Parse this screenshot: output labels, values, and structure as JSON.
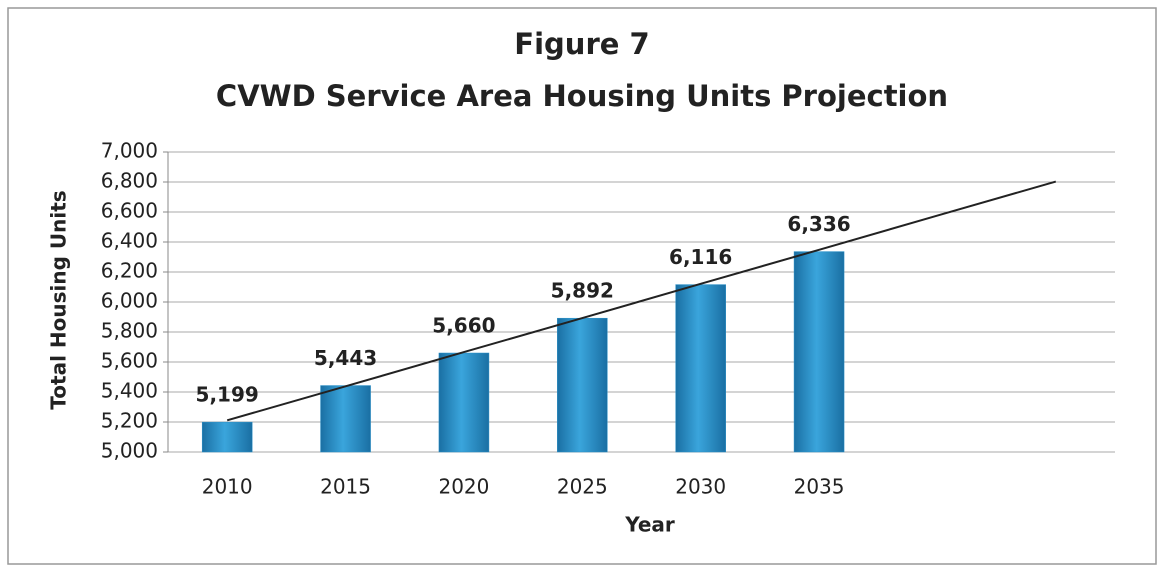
{
  "chart_data": {
    "type": "bar",
    "title": "Figure 7",
    "subtitle": "CVWD Service Area Housing Units Projection",
    "x_label": "Year",
    "y_label": "Total Housing Units",
    "categories": [
      "2010",
      "2015",
      "2020",
      "2025",
      "2030",
      "2035",
      null,
      null
    ],
    "values": [
      5199,
      5443,
      5660,
      5892,
      6116,
      6336,
      null,
      null
    ],
    "value_labels": [
      "5,199",
      "5,443",
      "5,660",
      "5,892",
      "6,116",
      "6,336",
      null,
      null
    ],
    "color": "#2a8fc7",
    "trend": {
      "values": [
        5211,
        5438,
        5666,
        5893,
        6121,
        6348,
        6576,
        6803
      ],
      "color": "#222222"
    },
    "ylim": [
      5000,
      7000
    ],
    "yticks": [
      {
        "value": 5000,
        "label": "5,000"
      },
      {
        "value": 5200,
        "label": "5,200"
      },
      {
        "value": 5400,
        "label": "5,400"
      },
      {
        "value": 5600,
        "label": "5,600"
      },
      {
        "value": 5800,
        "label": "5,800"
      },
      {
        "value": 6000,
        "label": "6,000"
      },
      {
        "value": 6200,
        "label": "6,200"
      },
      {
        "value": 6400,
        "label": "6,400"
      },
      {
        "value": 6600,
        "label": "6,600"
      },
      {
        "value": 6800,
        "label": "6,800"
      },
      {
        "value": 7000,
        "label": "7,000"
      }
    ],
    "grid": true
  }
}
